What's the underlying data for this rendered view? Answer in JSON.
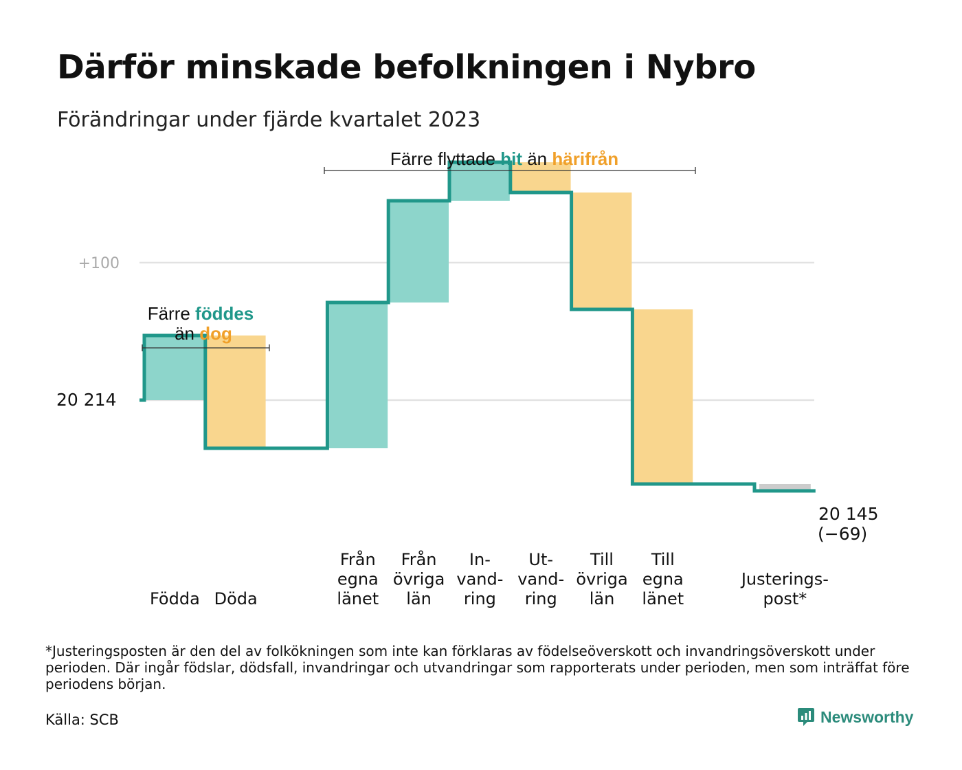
{
  "title": "Därför minskade befolkningen i Nybro",
  "subtitle": "Förändringar under fjärde kvartalet 2023",
  "colors": {
    "inflow": "#8dd5cb",
    "outflow": "#f9d68e",
    "adjustment": "#cccccc",
    "line": "#20978a",
    "grid": "#e2e2e2",
    "teal_text": "#20978a",
    "orange_text": "#f0a02a"
  },
  "chart_data": {
    "type": "waterfall",
    "start": 20214,
    "start_label": "20  214",
    "end": 20145,
    "end_label": "20 145",
    "change_label": "(−69)",
    "gridlines": [
      {
        "value": 20314,
        "label": "+100"
      },
      {
        "value": 20214,
        "label": ""
      }
    ],
    "ylim": [
      20040,
      20390
    ],
    "steps": [
      {
        "label": [
          "Födda"
        ],
        "value": 47,
        "kind": "inflow"
      },
      {
        "label": [
          "Döda"
        ],
        "value": -82,
        "kind": "outflow"
      },
      {
        "label": [],
        "value": 0,
        "kind": "gap"
      },
      {
        "label": [
          "Från",
          "egna",
          "länet"
        ],
        "value": 106,
        "kind": "inflow"
      },
      {
        "label": [
          "Från",
          "övriga",
          "län"
        ],
        "value": 74,
        "kind": "inflow"
      },
      {
        "label": [
          "In-",
          "vand-",
          "ring"
        ],
        "value": 28,
        "kind": "inflow"
      },
      {
        "label": [
          "Ut-",
          "vand-",
          "ring"
        ],
        "value": -22,
        "kind": "outflow"
      },
      {
        "label": [
          "Till",
          "övriga",
          "län"
        ],
        "value": -85,
        "kind": "outflow"
      },
      {
        "label": [
          "Till",
          "egna",
          "länet"
        ],
        "value": -127,
        "kind": "outflow"
      },
      {
        "label": [],
        "value": 0,
        "kind": "gap"
      },
      {
        "label": [
          "Justerings-",
          "post*"
        ],
        "value": -5,
        "kind": "adjustment"
      }
    ],
    "annotations": [
      {
        "parts": [
          {
            "text": "Färre ",
            "color": "#111111"
          },
          {
            "text": "föddes",
            "color": "#20978a"
          }
        ],
        "parts2": [
          {
            "text": "än ",
            "color": "#111111"
          },
          {
            "text": "dog",
            "color": "#f0a02a"
          }
        ]
      },
      {
        "parts": [
          {
            "text": "Färre flyttade  ",
            "color": "#111111"
          },
          {
            "text": "hit",
            "color": "#20978a"
          },
          {
            "text": "  än ",
            "color": "#111111"
          },
          {
            "text": "härifrån",
            "color": "#f0a02a"
          }
        ]
      }
    ]
  },
  "footnote": "*Justeringsposten är den del av folkökningen som inte kan förklaras av födelseöverskott och invandringsöverskott under perioden. Där ingår födslar, dödsfall, invandringar och utvandringar som rapporterats under perioden, men som inträffat före periodens början.",
  "source": "Källa: SCB",
  "brand": {
    "name": "Newsworthy",
    "icon": "newsworthy-logo-icon"
  }
}
